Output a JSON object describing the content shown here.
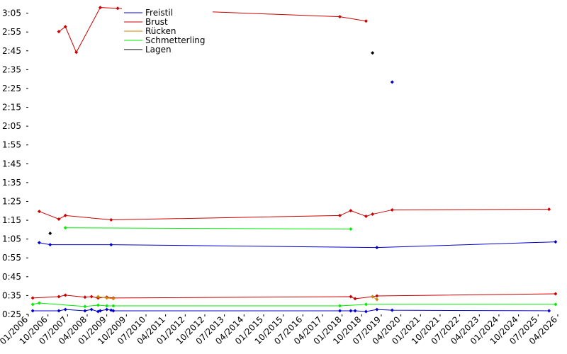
{
  "chart_data": {
    "type": "line",
    "xlim": [
      "01/2006",
      "05/2026"
    ],
    "xticks": [
      "01/2006",
      "10/2006",
      "07/2007",
      "04/2008",
      "01/2009",
      "10/2009",
      "07/2010",
      "04/2011",
      "01/2012",
      "10/2012",
      "07/2013",
      "04/2014",
      "01/2015",
      "10/2015",
      "07/2016",
      "04/2017",
      "01/2018",
      "10/2018",
      "07/2019",
      "04/2020",
      "01/2021",
      "10/2021",
      "07/2022",
      "04/2023",
      "01/2024",
      "10/2024",
      "07/2025",
      "04/2026"
    ],
    "ylim": [
      25,
      192
    ],
    "yticks": [
      {
        "value": 25,
        "label": "0:25"
      },
      {
        "value": 35,
        "label": "0:35"
      },
      {
        "value": 45,
        "label": "0:45"
      },
      {
        "value": 55,
        "label": "0:55"
      },
      {
        "value": 65,
        "label": "1:05"
      },
      {
        "value": 75,
        "label": "1:15"
      },
      {
        "value": 85,
        "label": "1:25"
      },
      {
        "value": 95,
        "label": "1:35"
      },
      {
        "value": 105,
        "label": "1:45"
      },
      {
        "value": 115,
        "label": "1:55"
      },
      {
        "value": 125,
        "label": "2:05"
      },
      {
        "value": 135,
        "label": "2:15"
      },
      {
        "value": 145,
        "label": "2:25"
      },
      {
        "value": 155,
        "label": "2:35"
      },
      {
        "value": 165,
        "label": "2:45"
      },
      {
        "value": 175,
        "label": "2:55"
      },
      {
        "value": 185,
        "label": "3:05"
      }
    ],
    "series": [
      {
        "name": "Freistil",
        "color": "#0000cc",
        "lines": [
          {
            "x": [
              "03/2006",
              "03/2007",
              "06/2007",
              "03/2008",
              "06/2008",
              "09/2008",
              "10/2008",
              "01/2009",
              "03/2009",
              "04/2009",
              "12/2017",
              "05/2018",
              "07/2018",
              "12/2018",
              "05/2019",
              "12/2019",
              "12/2025"
            ],
            "values": [
              26.9,
              26.9,
              27.6,
              26.9,
              27.6,
              26.5,
              26.9,
              27.6,
              27.2,
              26.9,
              26.9,
              26.9,
              26.9,
              26.5,
              27.6,
              27.2,
              26.9
            ]
          },
          {
            "x": [
              "06/2006",
              "11/2006",
              "03/2009",
              "05/2019",
              "03/2026"
            ],
            "values": [
              63.1,
              62.0,
              62.0,
              60.5,
              63.5
            ]
          },
          {
            "x": [
              "12/2019"
            ],
            "values": [
              148.4
            ]
          }
        ]
      },
      {
        "name": "Brust",
        "color": "#cc0000",
        "lines": [
          {
            "x": [
              "03/2006",
              "03/2007",
              "06/2007",
              "03/2008",
              "06/2008",
              "09/2008",
              "01/2009",
              "04/2009",
              "05/2018",
              "07/2018",
              "03/2019",
              "05/2019",
              "03/2026"
            ],
            "values": [
              33.7,
              34.4,
              35.2,
              34.1,
              34.4,
              33.7,
              34.1,
              33.7,
              34.4,
              33.3,
              34.4,
              34.8,
              35.9
            ]
          },
          {
            "x": [
              "06/2006",
              "03/2007",
              "06/2007",
              "03/2009",
              "12/2017",
              "05/2018",
              "12/2018",
              "03/2019",
              "12/2019",
              "12/2025"
            ],
            "values": [
              79.7,
              75.6,
              77.5,
              75.2,
              77.5,
              80.1,
              77.1,
              78.2,
              80.5,
              80.8
            ]
          },
          {
            "x": [
              "03/2007",
              "06/2007",
              "11/2007",
              "10/2008",
              "06/2009",
              "12/2017",
              "12/2018"
            ],
            "values": [
              175.2,
              177.8,
              164.2,
              188.0,
              187.6,
              183.1,
              180.8
            ]
          }
        ]
      },
      {
        "name": "Rücken",
        "color": "#cc8800",
        "lines": [
          {
            "x": [
              "09/2008",
              "01/2009",
              "04/2009"
            ],
            "values": [
              34.4,
              33.7,
              33.3
            ]
          },
          {
            "x": [
              "03/2019",
              "05/2019"
            ],
            "values": [
              34.4,
              32.9
            ]
          }
        ]
      },
      {
        "name": "Schmetterling",
        "color": "#00ee00",
        "lines": [
          {
            "x": [
              "03/2006",
              "06/2006",
              "03/2008",
              "09/2008",
              "01/2009",
              "04/2009",
              "12/2017",
              "12/2018",
              "03/2026"
            ],
            "values": [
              30.3,
              31.0,
              29.2,
              29.9,
              29.5,
              29.5,
              29.5,
              30.3,
              30.3
            ]
          },
          {
            "x": [
              "06/2007",
              "05/2018"
            ],
            "values": [
              71.0,
              70.3
            ]
          }
        ]
      },
      {
        "name": "Lagen",
        "color": "#000000",
        "lines": [
          {
            "x": [
              "11/2006"
            ],
            "values": [
              68.0
            ]
          },
          {
            "x": [
              "03/2019"
            ],
            "values": [
              163.9
            ]
          }
        ]
      }
    ]
  }
}
